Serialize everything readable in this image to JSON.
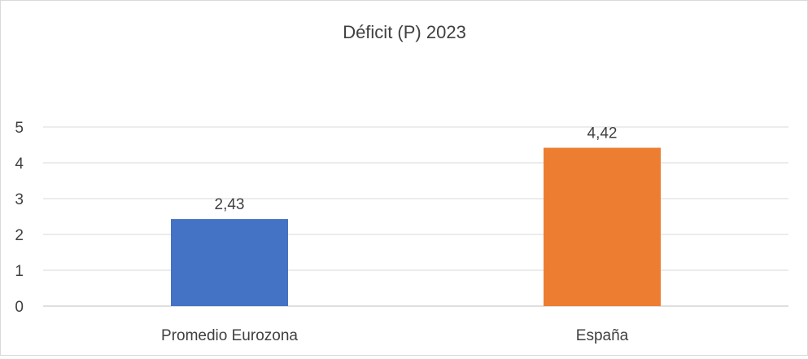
{
  "chart_data": {
    "type": "bar",
    "title": "Déficit (P) 2023",
    "categories": [
      "Promedio Eurozona",
      "España"
    ],
    "values": [
      2.43,
      4.42
    ],
    "value_labels": [
      "2,43",
      "4,42"
    ],
    "colors": [
      "#4472C4",
      "#ED7D31"
    ],
    "ylim": [
      0,
      5
    ],
    "yticks": [
      "0",
      "1",
      "2",
      "3",
      "4",
      "5"
    ],
    "xlabel": "",
    "ylabel": "",
    "grid": true
  }
}
